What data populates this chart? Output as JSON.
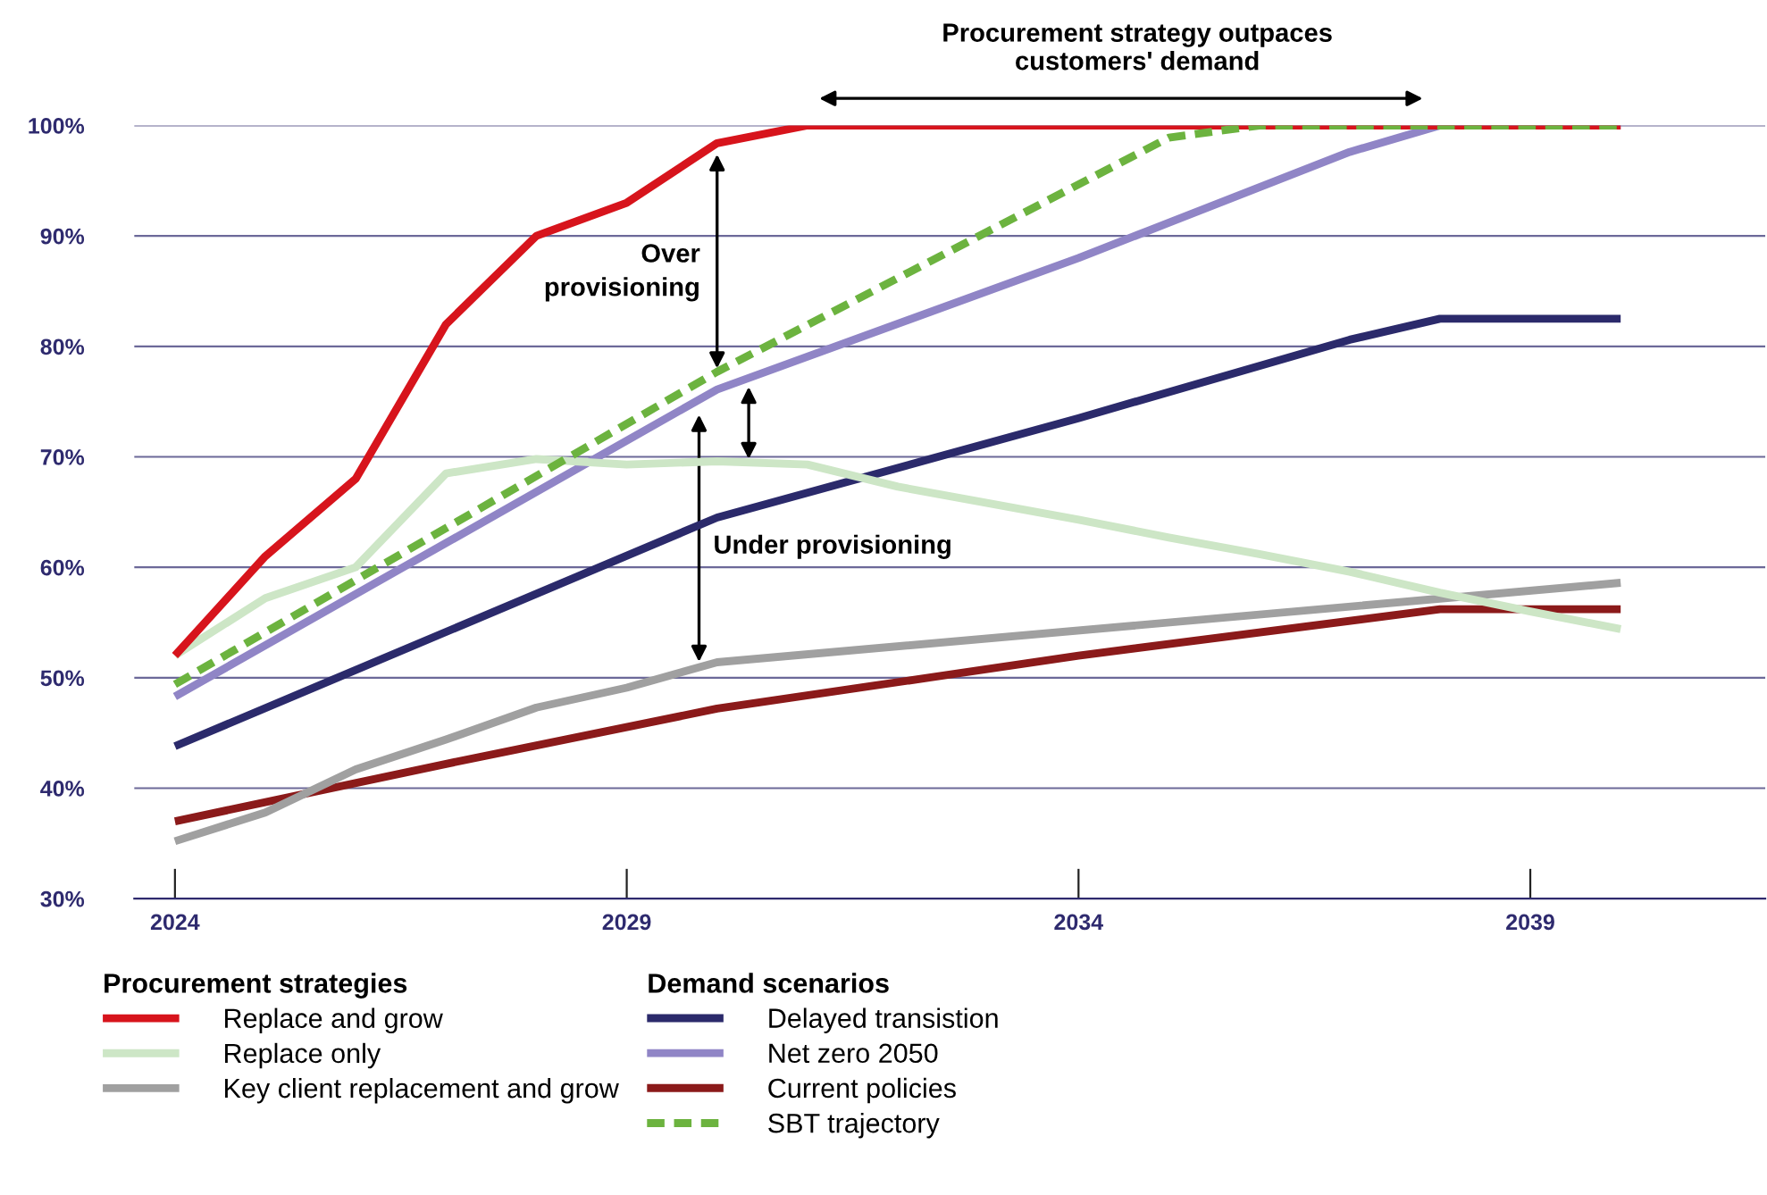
{
  "chart_data": {
    "type": "line",
    "annotations": [
      "Procurement strategy outpaces\ncustomers' demand",
      "Over\nprovisioning",
      "Under provisioning"
    ],
    "legend_title": [
      "Procurement strategies",
      "Demand scenarios"
    ],
    "series": [
      {
        "name": "Replace and grow",
        "color": "#d7141c",
        "x": [
          2024,
          2025,
          2026,
          2027,
          2028,
          2029,
          2030,
          2031,
          2040
        ],
        "values": [
          52,
          61,
          68,
          82,
          90,
          93,
          98.4,
          100,
          100
        ]
      },
      {
        "name": "Replace only",
        "color": "#cde6c6",
        "x": [
          2024,
          2025,
          2026,
          2027,
          2028,
          2029,
          2030,
          2031,
          2032,
          2033,
          2034,
          2035,
          2036,
          2037,
          2038,
          2039,
          2040
        ],
        "values": [
          52,
          57.2,
          60,
          68.5,
          69.8,
          69.3,
          69.6,
          69.3,
          67.3,
          65.8,
          64.3,
          62.7,
          61.2,
          59.6,
          57.7,
          56,
          54.4
        ]
      },
      {
        "name": "Key client replacement and grow",
        "color": "#a0a0a0",
        "x": [
          2024,
          2025,
          2026,
          2027,
          2028,
          2029,
          2030,
          2040
        ],
        "values": [
          35.2,
          37.8,
          41.7,
          44.4,
          47.3,
          49.1,
          51.4,
          58.6
        ]
      },
      {
        "name": "Delayed transistion",
        "color": "#2b2a6b",
        "x": [
          2024,
          2030,
          2034,
          2037,
          2038,
          2040
        ],
        "values": [
          43.8,
          64.5,
          73.5,
          80.6,
          82.5,
          82.5
        ]
      },
      {
        "name": "Net zero 2050",
        "color": "#9085c6",
        "x": [
          2024,
          2030,
          2034,
          2037,
          2038,
          2040
        ],
        "values": [
          48.3,
          76.1,
          88,
          97.6,
          100,
          100
        ]
      },
      {
        "name": "Current policies",
        "color": "#8b1a1a",
        "x": [
          2024,
          2027,
          2030,
          2034,
          2038,
          2040
        ],
        "values": [
          37,
          42.2,
          47.2,
          52,
          56.2,
          56.2
        ]
      },
      {
        "name": "SBT trajectory",
        "color": "#6cb33f",
        "line_style": "dashed",
        "x": [
          2024,
          2030,
          2035,
          2036,
          2040
        ],
        "values": [
          49.4,
          77.7,
          98.9,
          100,
          100
        ]
      }
    ],
    "xlim": [
      2023.55,
      2041.6
    ],
    "xticks": [
      2024,
      2029,
      2034,
      2039
    ],
    "ylim": [
      30,
      100
    ],
    "yticks": [
      {
        "value": 30,
        "label": "30%"
      },
      {
        "value": 40,
        "label": "40%"
      },
      {
        "value": 50,
        "label": "50%"
      },
      {
        "value": 60,
        "label": "60%"
      },
      {
        "value": 70,
        "label": "70%"
      },
      {
        "value": 80,
        "label": "80%"
      },
      {
        "value": 90,
        "label": "90%"
      },
      {
        "value": 100,
        "label": "100%"
      }
    ],
    "grid": "y",
    "legend": "bottom",
    "marker": "none",
    "line_style": "solid"
  }
}
